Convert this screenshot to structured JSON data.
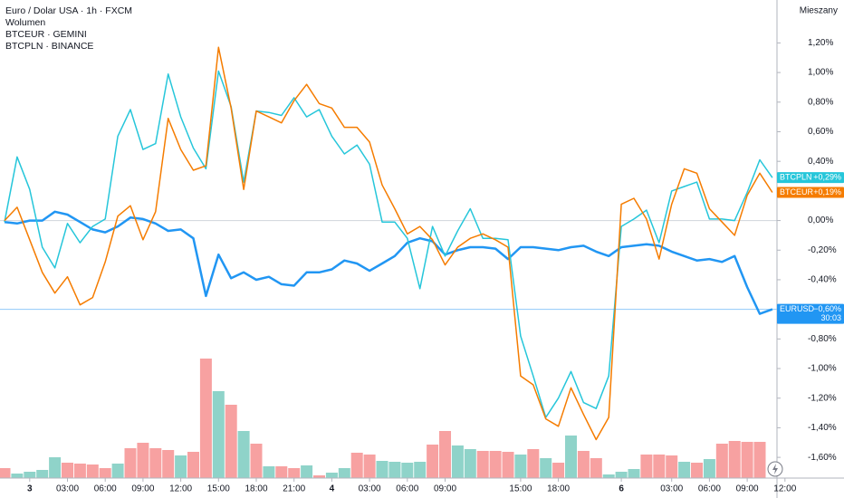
{
  "chart_data": {
    "type": "line",
    "title": "Euro / Dolar USA · 1h · FXCM",
    "scale_mode": "Mieszany",
    "countdown": "30:03",
    "x": [
      0,
      1,
      2,
      3,
      4,
      5,
      6,
      7,
      8,
      9,
      10,
      11,
      12,
      13,
      14,
      15,
      16,
      17,
      18,
      19,
      20,
      21,
      22,
      23,
      24,
      25,
      26,
      27,
      28,
      29,
      30,
      31,
      32,
      33,
      34,
      35,
      36,
      37,
      38,
      39,
      40,
      41,
      42,
      43,
      44,
      45,
      46,
      47,
      48,
      49,
      50,
      51,
      52,
      53,
      54,
      55,
      56,
      57,
      58,
      59,
      60,
      61
    ],
    "xlim": [
      -0.36,
      66.69
    ],
    "xticks": [
      {
        "value": 2,
        "label": "3"
      },
      {
        "value": 5,
        "label": "03:00"
      },
      {
        "value": 8,
        "label": "06:00"
      },
      {
        "value": 11,
        "label": "09:00"
      },
      {
        "value": 14,
        "label": "12:00"
      },
      {
        "value": 17,
        "label": "15:00"
      },
      {
        "value": 20,
        "label": "18:00"
      },
      {
        "value": 23,
        "label": "21:00"
      },
      {
        "value": 26,
        "label": "4"
      },
      {
        "value": 29,
        "label": "03:00"
      },
      {
        "value": 32,
        "label": "06:00"
      },
      {
        "value": 35,
        "label": "09:00"
      },
      {
        "value": 41,
        "label": "15:00"
      },
      {
        "value": 44,
        "label": "18:00"
      },
      {
        "value": 49,
        "label": "6"
      },
      {
        "value": 53,
        "label": "03:00"
      },
      {
        "value": 56,
        "label": "06:00"
      },
      {
        "value": 59,
        "label": "09:00"
      },
      {
        "value": 62,
        "label": "12:00"
      }
    ],
    "ylim": [
      -1.74,
      1.49
    ],
    "yticks": [
      {
        "value": 1.2,
        "label": "1,20%"
      },
      {
        "value": 1.0,
        "label": "1,00%"
      },
      {
        "value": 0.8,
        "label": "0,80%"
      },
      {
        "value": 0.6,
        "label": "0,60%"
      },
      {
        "value": 0.4,
        "label": "0,40%"
      },
      {
        "value": 0.2,
        "label": "0,20%"
      },
      {
        "value": 0,
        "label": "0,00%"
      },
      {
        "value": -0.2,
        "label": "-0,20%"
      },
      {
        "value": -0.4,
        "label": "-0,40%"
      },
      {
        "value": -0.6,
        "label": "-0,60%"
      },
      {
        "value": -0.8,
        "label": "-0,80%"
      },
      {
        "value": -1.0,
        "label": "-1,00%"
      },
      {
        "value": -1.2,
        "label": "-1,20%"
      },
      {
        "value": -1.4,
        "label": "-1,40%"
      },
      {
        "value": -1.6,
        "label": "-1,60%"
      }
    ],
    "grid": false,
    "series": [
      {
        "name": "EURUSD",
        "color": "#2196f3",
        "width": 2.5,
        "values": [
          -0.01,
          -0.02,
          0,
          0,
          0.06,
          0.04,
          -0.01,
          -0.06,
          -0.08,
          -0.04,
          0.02,
          0.01,
          -0.02,
          -0.07,
          -0.06,
          -0.12,
          -0.51,
          -0.23,
          -0.39,
          -0.35,
          -0.4,
          -0.38,
          -0.43,
          -0.44,
          -0.35,
          -0.35,
          -0.33,
          -0.27,
          -0.29,
          -0.34,
          -0.29,
          -0.24,
          -0.15,
          -0.12,
          -0.14,
          -0.23,
          -0.2,
          -0.18,
          -0.18,
          -0.19,
          -0.26,
          -0.18,
          -0.18,
          -0.19,
          -0.2,
          -0.18,
          -0.17,
          -0.21,
          -0.24,
          -0.18,
          -0.17,
          -0.16,
          -0.17,
          -0.21,
          -0.24,
          -0.27,
          -0.26,
          -0.28,
          -0.24,
          -0.45,
          -0.63,
          -0.6
        ],
        "last_label": "−0,60%"
      },
      {
        "name": "BTCPLN",
        "legend": "BTCPLN · BINANCE",
        "color": "#26c6da",
        "width": 1.5,
        "values": [
          -0.01,
          0.43,
          0.21,
          -0.18,
          -0.32,
          -0.02,
          -0.15,
          -0.04,
          0.01,
          0.57,
          0.75,
          0.48,
          0.52,
          0.99,
          0.7,
          0.49,
          0.35,
          1.01,
          0.77,
          0.26,
          0.74,
          0.73,
          0.71,
          0.83,
          0.7,
          0.75,
          0.57,
          0.45,
          0.51,
          0.38,
          -0.01,
          -0.01,
          -0.12,
          -0.46,
          -0.04,
          -0.24,
          -0.07,
          0.08,
          -0.12,
          -0.12,
          -0.13,
          -0.78,
          -1.05,
          -1.33,
          -1.2,
          -1.02,
          -1.23,
          -1.27,
          -1.05,
          -0.04,
          0.01,
          0.07,
          -0.15,
          0.2,
          0.23,
          0.26,
          0.01,
          0.01,
          0,
          0.19,
          0.41,
          0.29
        ],
        "last_label": "+0,29%"
      },
      {
        "name": "BTCEUR",
        "legend": "BTCEUR · GEMINI",
        "color": "#f57c00",
        "width": 1.5,
        "values": [
          0,
          0.09,
          -0.13,
          -0.35,
          -0.49,
          -0.38,
          -0.57,
          -0.52,
          -0.28,
          0.03,
          0.1,
          -0.13,
          0.06,
          0.69,
          0.48,
          0.34,
          0.37,
          1.17,
          0.76,
          0.21,
          0.74,
          0.7,
          0.66,
          0.81,
          0.92,
          0.79,
          0.76,
          0.63,
          0.63,
          0.53,
          0.24,
          0.08,
          -0.09,
          -0.04,
          -0.13,
          -0.3,
          -0.18,
          -0.12,
          -0.09,
          -0.13,
          -0.18,
          -1.05,
          -1.11,
          -1.34,
          -1.39,
          -1.13,
          -1.31,
          -1.48,
          -1.33,
          0.11,
          0.15,
          0.01,
          -0.26,
          0.11,
          0.35,
          0.32,
          0.08,
          -0.01,
          -0.1,
          0.17,
          0.32,
          0.19
        ],
        "last_label": "+0,19%"
      }
    ],
    "volume": {
      "name": "Wolumen",
      "vlim": [
        0,
        528
      ],
      "values": [
        11,
        5,
        7,
        9,
        23,
        17,
        16,
        15,
        11,
        16,
        33,
        39,
        33,
        31,
        25,
        29,
        132,
        96,
        81,
        52,
        38,
        13,
        13,
        11,
        14,
        3,
        6,
        11,
        28,
        26,
        19,
        18,
        17,
        18,
        37,
        52,
        36,
        32,
        30,
        30,
        29,
        26,
        32,
        22,
        17,
        47,
        30,
        22,
        4,
        7,
        10,
        26,
        26,
        25,
        18,
        17,
        21,
        38,
        41,
        40,
        40,
        null
      ],
      "colors": [
        "#f7a1a1",
        "#8fd3c9",
        "#8fd3c9",
        "#8fd3c9",
        "#8fd3c9",
        "#f7a1a1",
        "#f7a1a1",
        "#f7a1a1",
        "#f7a1a1",
        "#8fd3c9",
        "#f7a1a1",
        "#f7a1a1",
        "#f7a1a1",
        "#f7a1a1",
        "#8fd3c9",
        "#f7a1a1",
        "#f7a1a1",
        "#8fd3c9",
        "#f7a1a1",
        "#8fd3c9",
        "#f7a1a1",
        "#8fd3c9",
        "#f7a1a1",
        "#f7a1a1",
        "#8fd3c9",
        "#f7a1a1",
        "#8fd3c9",
        "#8fd3c9",
        "#f7a1a1",
        "#f7a1a1",
        "#8fd3c9",
        "#8fd3c9",
        "#8fd3c9",
        "#8fd3c9",
        "#f7a1a1",
        "#f7a1a1",
        "#8fd3c9",
        "#8fd3c9",
        "#f7a1a1",
        "#f7a1a1",
        "#f7a1a1",
        "#8fd3c9",
        "#f7a1a1",
        "#8fd3c9",
        "#f7a1a1",
        "#8fd3c9",
        "#f7a1a1",
        "#f7a1a1",
        "#8fd3c9",
        "#8fd3c9",
        "#8fd3c9",
        "#f7a1a1",
        "#f7a1a1",
        "#f7a1a1",
        "#8fd3c9",
        "#f7a1a1",
        "#8fd3c9",
        "#f7a1a1",
        "#f7a1a1",
        "#f7a1a1",
        "#f7a1a1",
        "#8fd3c9"
      ]
    }
  }
}
